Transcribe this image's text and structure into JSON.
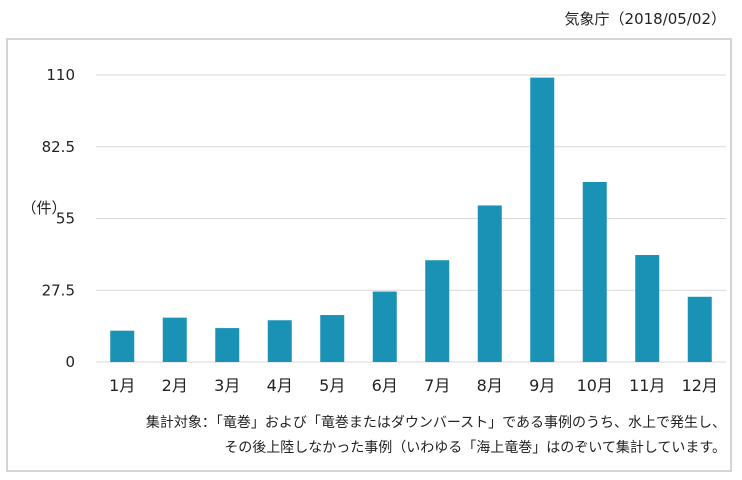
{
  "source_label": "気象庁（2018/05/02）",
  "footnote": {
    "line1": "集計対象：「竜巻」および「竜巻またはダウンバースト」である事例のうち、水上で発生し、",
    "line2": "その後上陸しなかった事例（いわゆる「海上竜巻」はのぞいて集計しています。"
  },
  "chart_data": {
    "type": "bar",
    "categories": [
      "1月",
      "2月",
      "3月",
      "4月",
      "5月",
      "6月",
      "7月",
      "8月",
      "9月",
      "10月",
      "11月",
      "12月"
    ],
    "values": [
      12,
      17,
      13,
      16,
      18,
      27,
      39,
      60,
      109,
      69,
      41,
      25
    ],
    "ylabel": "（件）",
    "ylim": [
      0,
      110
    ],
    "yticks": [
      0,
      27.5,
      55,
      82.5,
      110
    ],
    "ytick_labels": [
      "0",
      "27.5",
      "55",
      "82.5",
      "110"
    ],
    "grid": true,
    "bar_color": "#1a92b6",
    "grid_color": "#d9d9d9"
  }
}
